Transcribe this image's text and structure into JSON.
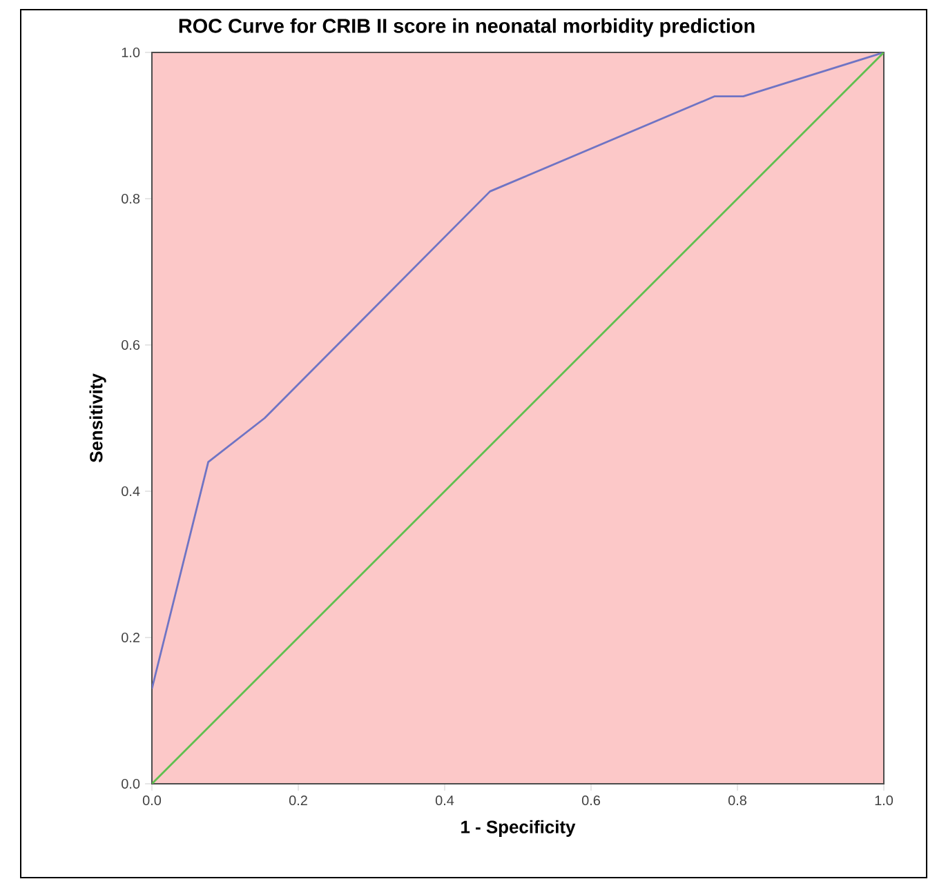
{
  "chart_data": {
    "type": "line",
    "title": "ROC Curve for CRIB II score in neonatal morbidity prediction",
    "xlabel": "1 - Specificity",
    "ylabel": "Sensitivity",
    "series": [
      {
        "color": "#6f74c4",
        "x": [
          0,
          0.077,
          0.154,
          0.462,
          0.769,
          0.808,
          1
        ],
        "values": [
          0.13,
          0.44,
          0.5,
          0.81,
          0.94,
          0.94,
          1
        ]
      },
      {
        "color": "#5fbf4f",
        "x": [
          0,
          1
        ],
        "values": [
          0,
          1
        ]
      }
    ],
    "xlim": [
      0,
      1
    ],
    "ylim": [
      0,
      1
    ],
    "xticks": [
      {
        "value": 0,
        "label": "0.0"
      },
      0.2,
      0.4,
      0.6,
      0.8,
      {
        "value": 1,
        "label": "1.0"
      }
    ],
    "yticks": [
      {
        "value": 0,
        "label": "0.0"
      },
      0.2,
      0.4,
      0.6,
      0.8,
      {
        "value": 1,
        "label": "1.0"
      }
    ],
    "grid": false,
    "marker": "none",
    "line_style": "solid"
  }
}
